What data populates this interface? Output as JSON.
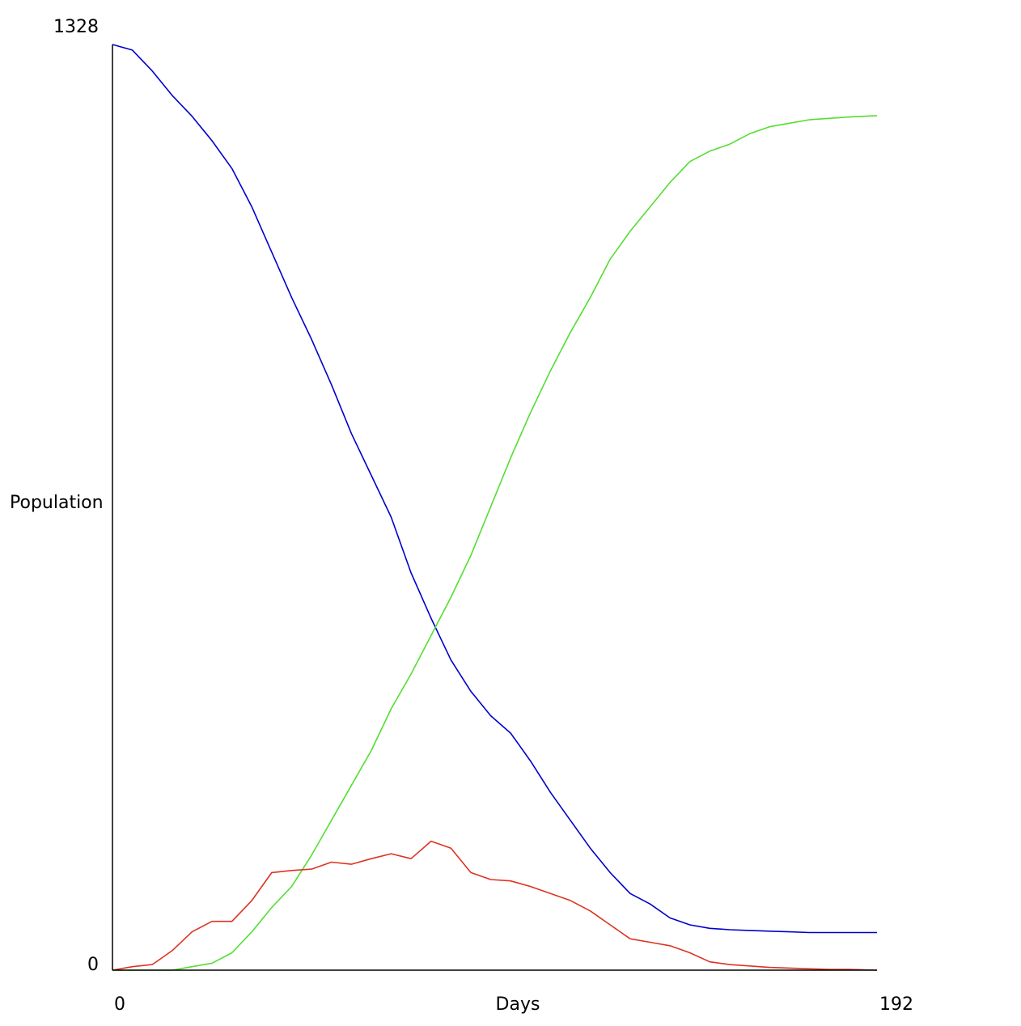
{
  "chart_data": {
    "type": "line",
    "title": "",
    "xlabel": "Days",
    "ylabel": "Population",
    "xlim": [
      0,
      192
    ],
    "ylim": [
      0,
      1328
    ],
    "x_tick_labels": [
      "0",
      "192"
    ],
    "y_tick_labels": [
      "0",
      "1328"
    ],
    "grid": false,
    "legend": "none",
    "series": [
      {
        "color": "#0000cc",
        "x": [
          0,
          5,
          10,
          15,
          20,
          25,
          30,
          35,
          40,
          45,
          50,
          55,
          60,
          65,
          70,
          75,
          80,
          85,
          90,
          95,
          100,
          105,
          110,
          115,
          120,
          125,
          130,
          135,
          140,
          145,
          150,
          155,
          160,
          165,
          170,
          175,
          180,
          185,
          192
        ],
        "values": [
          1328,
          1320,
          1290,
          1255,
          1225,
          1190,
          1150,
          1095,
          1030,
          965,
          905,
          840,
          770,
          710,
          650,
          570,
          505,
          445,
          400,
          365,
          340,
          300,
          255,
          215,
          175,
          140,
          110,
          95,
          75,
          65,
          60,
          58,
          57,
          56,
          55,
          54,
          54,
          54,
          54
        ],
        "point_labels": []
      },
      {
        "color": "#55dd33",
        "x": [
          0,
          5,
          10,
          15,
          20,
          25,
          30,
          35,
          40,
          45,
          50,
          55,
          60,
          65,
          70,
          75,
          80,
          85,
          90,
          95,
          100,
          105,
          110,
          115,
          120,
          125,
          130,
          135,
          140,
          145,
          150,
          155,
          160,
          165,
          170,
          175,
          180,
          185,
          192
        ],
        "values": [
          0,
          0,
          0,
          0,
          5,
          10,
          25,
          55,
          90,
          120,
          165,
          215,
          265,
          315,
          375,
          425,
          480,
          535,
          595,
          665,
          735,
          800,
          860,
          915,
          965,
          1020,
          1060,
          1095,
          1130,
          1160,
          1175,
          1185,
          1200,
          1210,
          1215,
          1220,
          1222,
          1224,
          1226
        ],
        "point_labels": []
      },
      {
        "color": "#dd3322",
        "x": [
          0,
          5,
          10,
          15,
          20,
          25,
          30,
          35,
          40,
          45,
          50,
          55,
          60,
          65,
          70,
          75,
          80,
          85,
          90,
          95,
          100,
          105,
          110,
          115,
          120,
          125,
          130,
          135,
          140,
          145,
          150,
          155,
          160,
          165,
          170,
          175,
          180,
          185,
          192
        ],
        "values": [
          0,
          5,
          8,
          28,
          55,
          70,
          70,
          100,
          140,
          143,
          145,
          155,
          152,
          160,
          167,
          160,
          185,
          175,
          140,
          130,
          128,
          120,
          110,
          100,
          85,
          65,
          45,
          40,
          35,
          25,
          12,
          8,
          6,
          4,
          3,
          2,
          1,
          1,
          0
        ],
        "point_labels": []
      }
    ]
  }
}
